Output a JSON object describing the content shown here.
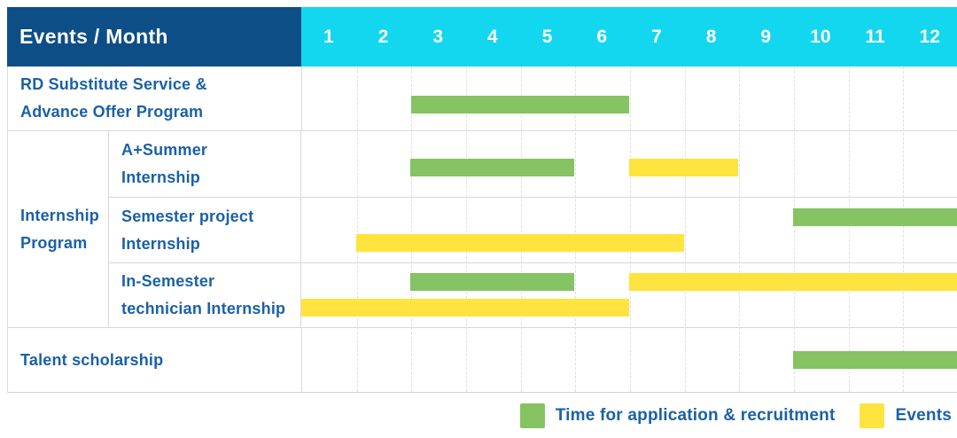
{
  "colors": {
    "header_navy": "#0D4E86",
    "header_cyan": "#12D7EF",
    "green": "#85C363",
    "yellow": "#FFE33E",
    "label_blue": "#1A61A8",
    "gridline_gray": "#D8D8D8"
  },
  "chart_data": {
    "type": "table",
    "subtype": "gantt-schedule",
    "corner_header": "Events / Month",
    "months": [
      "1",
      "2",
      "3",
      "4",
      "5",
      "6",
      "7",
      "8",
      "9",
      "10",
      "11",
      "12"
    ],
    "month_range": [
      1,
      12
    ],
    "grid": "on",
    "legend_position": "bottom-right",
    "legend": [
      {
        "label": "Time for application & recruitment",
        "color": "#85C363",
        "series": "green"
      },
      {
        "label": "Events",
        "color": "#FFE33E",
        "series": "yellow"
      }
    ],
    "rows": [
      {
        "id": "rd-substitute",
        "label": "RD Substitute Service & Advance Offer Program",
        "label_lines": [
          "RD Substitute Service &",
          "Advance Offer Program"
        ],
        "bars": [
          {
            "line": 0,
            "color": "green",
            "start_month": 3,
            "end_month": 6
          }
        ]
      },
      {
        "id": "internship-program",
        "label": "Internship Program",
        "label_lines": [
          "Internship",
          "Program"
        ],
        "children": [
          {
            "id": "a-summer",
            "label": "A+Summer Internship",
            "label_lines": [
              "A+Summer",
              "Internship"
            ],
            "bars": [
              {
                "line": 0,
                "color": "green",
                "start_month": 3,
                "end_month": 5
              },
              {
                "line": 0,
                "color": "yellow",
                "start_month": 7,
                "end_month": 8
              }
            ]
          },
          {
            "id": "semester-project",
            "label": "Semester project Internship",
            "label_lines": [
              "Semester project",
              "Internship"
            ],
            "bars": [
              {
                "line": 0,
                "color": "green",
                "start_month": 10,
                "end_month": 12
              },
              {
                "line": 1,
                "color": "yellow",
                "start_month": 2,
                "end_month": 7
              }
            ]
          },
          {
            "id": "in-semester",
            "label": "In-Semester technician Internship",
            "label_lines": [
              "In-Semester",
              "technician Internship"
            ],
            "bars": [
              {
                "line": 0,
                "color": "green",
                "start_month": 3,
                "end_month": 5
              },
              {
                "line": 0,
                "color": "yellow",
                "start_month": 7,
                "end_month": 12
              },
              {
                "line": 1,
                "color": "yellow",
                "start_month": 1,
                "end_month": 6
              }
            ]
          }
        ]
      },
      {
        "id": "talent-scholarship",
        "label": "Talent scholarship",
        "label_lines": [
          "Talent scholarship"
        ],
        "bars": [
          {
            "line": 0,
            "color": "green",
            "start_month": 10,
            "end_month": 12
          }
        ]
      }
    ]
  }
}
